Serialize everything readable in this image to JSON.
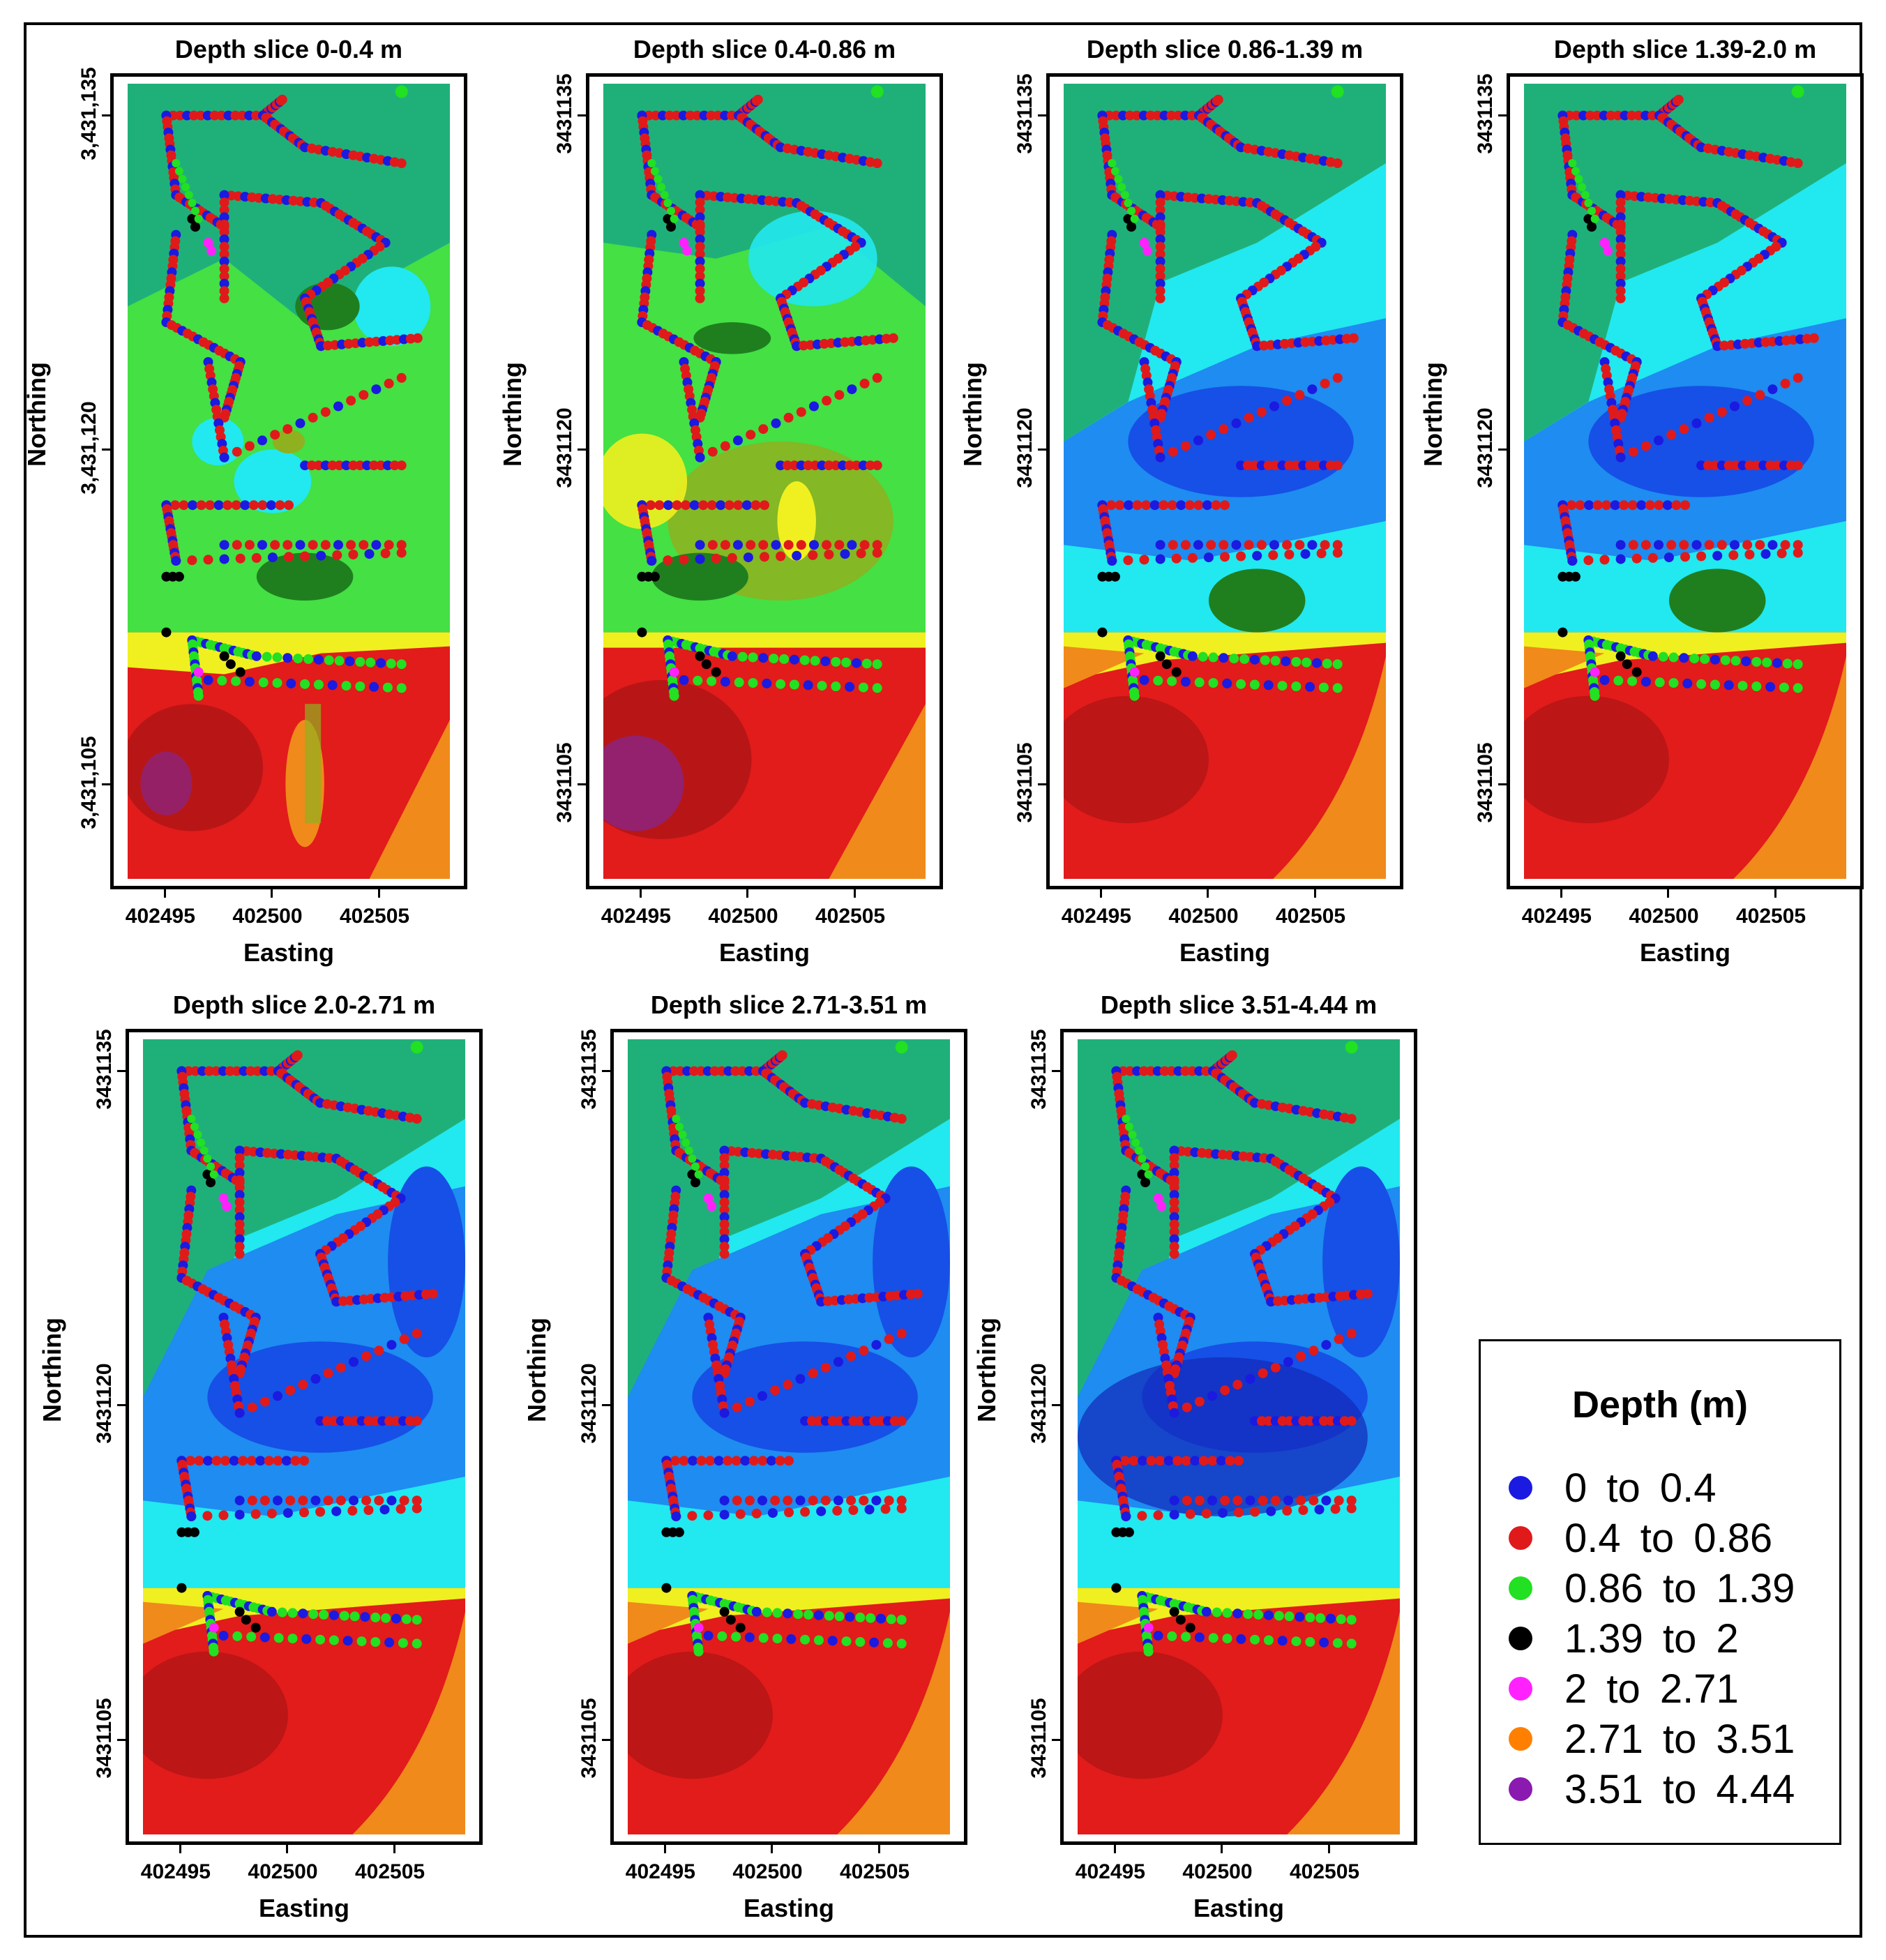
{
  "figure": {
    "panels": [
      {
        "title": "Depth slice 0-0.4 m",
        "yticks": [
          "3,431,135",
          "3,431,120",
          "3,431,105"
        ],
        "xticks": [
          "402495",
          "402500",
          "402505"
        ],
        "xlabel": "Easting",
        "ylabel": "Northing",
        "scheme": "shallow"
      },
      {
        "title": "Depth slice 0.4-0.86 m",
        "yticks": [
          "3431135",
          "3431120",
          "3431105"
        ],
        "xticks": [
          "402495",
          "402500",
          "402505"
        ],
        "xlabel": "Easting",
        "ylabel": "Northing",
        "scheme": "mid"
      },
      {
        "title": "Depth slice 0.86-1.39 m",
        "yticks": [
          "3431135",
          "3431120",
          "3431105"
        ],
        "xticks": [
          "402495",
          "402500",
          "402505"
        ],
        "xlabel": "Easting",
        "ylabel": "Northing",
        "scheme": "deep"
      },
      {
        "title": "Depth slice 1.39-2.0 m",
        "yticks": [
          "3431135",
          "3431120",
          "3431105"
        ],
        "xticks": [
          "402495",
          "402500",
          "402505"
        ],
        "xlabel": "Easting",
        "ylabel": "Northing",
        "scheme": "deep"
      },
      {
        "title": "Depth slice 2.0-2.71 m",
        "yticks": [
          "3431135",
          "3431120",
          "3431105"
        ],
        "xticks": [
          "402495",
          "402500",
          "402505"
        ],
        "xlabel": "Easting",
        "ylabel": "Northing",
        "scheme": "deeper"
      },
      {
        "title": "Depth slice 2.71-3.51 m",
        "yticks": [
          "3431135",
          "3431120",
          "3431105"
        ],
        "xticks": [
          "402495",
          "402500",
          "402505"
        ],
        "xlabel": "Easting",
        "ylabel": "Northing",
        "scheme": "deeper"
      },
      {
        "title": "Depth slice 3.51-4.44 m",
        "yticks": [
          "3431135",
          "3431120",
          "3431105"
        ],
        "xticks": [
          "402495",
          "402500",
          "402505"
        ],
        "xlabel": "Easting",
        "ylabel": "Northing",
        "scheme": "deepest"
      }
    ]
  },
  "legend": {
    "title": "Depth (m)",
    "items": [
      {
        "label": "0  to  0.4",
        "color": "#1a1ae0"
      },
      {
        "label": "0.4  to  0.86",
        "color": "#e01a1a"
      },
      {
        "label": "0.86  to  1.39",
        "color": "#22e022"
      },
      {
        "label": "1.39  to  2",
        "color": "#000000"
      },
      {
        "label": "2  to  2.71",
        "color": "#ff22ff"
      },
      {
        "label": "2.71  to  3.51",
        "color": "#ff8000"
      },
      {
        "label": "3.51  to  4.44",
        "color": "#8a1ab0"
      }
    ]
  },
  "colors": {
    "teal_green": "#1fb07a",
    "light_green": "#44e044",
    "dark_green": "#1f7f1f",
    "olive": "#8fb01f",
    "yellow": "#f0f020",
    "cyan": "#22e8f0",
    "light_blue": "#1e8cf0",
    "mid_blue": "#1650e6",
    "deep_blue": "#1228b8",
    "red": "#e21b1b",
    "dark_red": "#b81616",
    "orange": "#f08a1a",
    "purple": "#7a2aa8"
  }
}
